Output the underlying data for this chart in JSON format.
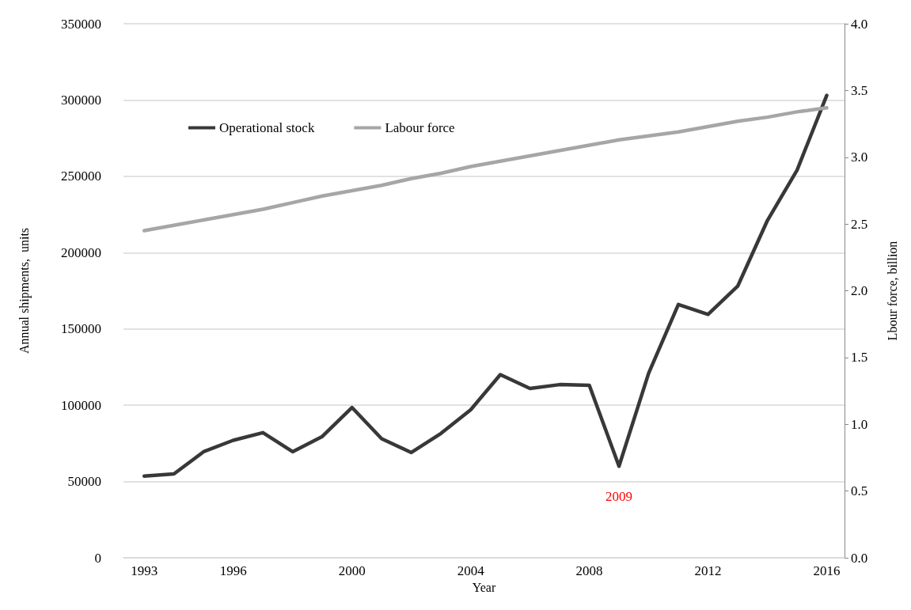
{
  "chart_data": {
    "type": "line",
    "xlabel": "Year",
    "ylabel": "Annual shipments,  units",
    "y2label": "Lbour force, billion",
    "x": [
      1993,
      1994,
      1995,
      1996,
      1997,
      1998,
      1999,
      2000,
      2001,
      2002,
      2003,
      2004,
      2005,
      2006,
      2007,
      2008,
      2009,
      2010,
      2011,
      2012,
      2013,
      2014,
      2015,
      2016
    ],
    "series": [
      {
        "name": "Operational stock",
        "color": "#383838",
        "values": [
          53500,
          55000,
          69500,
          77000,
          82000,
          69500,
          79500,
          98500,
          78000,
          69000,
          81500,
          97000,
          120000,
          111000,
          113500,
          113000,
          60000,
          121000,
          166000,
          159500,
          178000,
          221000,
          254000,
          303000
        ]
      },
      {
        "name": "Labour force",
        "color": "#a6a6a6",
        "axis": "y2",
        "values": [
          2.45,
          2.49,
          2.53,
          2.57,
          2.61,
          2.66,
          2.71,
          2.75,
          2.79,
          2.84,
          2.88,
          2.93,
          2.97,
          3.01,
          3.05,
          3.09,
          3.13,
          3.16,
          3.19,
          3.23,
          3.27,
          3.3,
          3.34,
          3.37
        ]
      }
    ],
    "xlim": [
      1992.3,
      2016.6
    ],
    "xticks": [
      1993,
      1996,
      2000,
      2004,
      2008,
      2012,
      2016
    ],
    "ylim": [
      0,
      350000
    ],
    "yticks": [
      0,
      50000,
      100000,
      150000,
      200000,
      250000,
      300000,
      350000
    ],
    "y2lim": [
      0,
      4
    ],
    "y2ticks": [
      {
        "value": 0,
        "label": "0.0"
      },
      {
        "value": 0.5,
        "label": "0.5"
      },
      {
        "value": 1,
        "label": "1.0"
      },
      {
        "value": 1.5,
        "label": "1.5"
      },
      {
        "value": 2,
        "label": "2.0"
      },
      {
        "value": 2.5,
        "label": "2.5"
      },
      {
        "value": 3,
        "label": "3.0"
      },
      {
        "value": 3.5,
        "label": "3.5"
      },
      {
        "value": 4,
        "label": "4.0"
      }
    ],
    "annotations": [
      "2009"
    ],
    "grid": "y",
    "legend": "top left",
    "marker": "none",
    "line_style": "solid"
  }
}
